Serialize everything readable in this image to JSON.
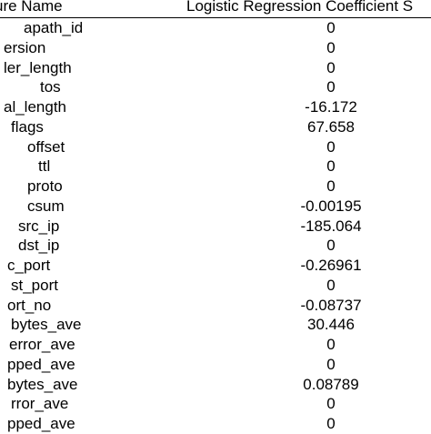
{
  "table": {
    "headers": {
      "feature": "ure Name",
      "coefficient": "Logistic Regression Coefficient S"
    },
    "rows": [
      {
        "feature": "apath_id",
        "value": "0"
      },
      {
        "feature": "ersion",
        "value": "0"
      },
      {
        "feature": "ler_length",
        "value": "0"
      },
      {
        "feature": "tos",
        "value": "0"
      },
      {
        "feature": "al_length",
        "value": "-16.172"
      },
      {
        "feature": "flags",
        "value": "67.658"
      },
      {
        "feature": "offset",
        "value": "0"
      },
      {
        "feature": "ttl",
        "value": "0"
      },
      {
        "feature": "proto",
        "value": "0"
      },
      {
        "feature": "csum",
        "value": "-0.00195"
      },
      {
        "feature": "src_ip",
        "value": "-185.064"
      },
      {
        "feature": "dst_ip",
        "value": "0"
      },
      {
        "feature": "c_port",
        "value": "-0.26961"
      },
      {
        "feature": "st_port",
        "value": "0"
      },
      {
        "feature": "ort_no",
        "value": "-0.08737"
      },
      {
        "feature": "bytes_ave",
        "value": "30.446"
      },
      {
        "feature": "error_ave",
        "value": "0"
      },
      {
        "feature": "pped_ave",
        "value": "0"
      },
      {
        "feature": "bytes_ave",
        "value": "0.08789"
      },
      {
        "feature": "rror_ave",
        "value": "0"
      },
      {
        "feature": "pped_ave",
        "value": "0"
      }
    ]
  }
}
